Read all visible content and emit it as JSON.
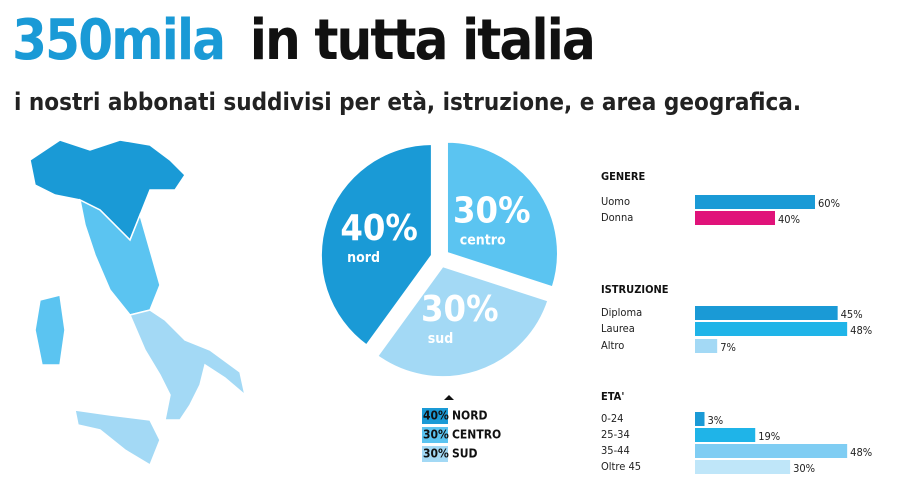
{
  "header": {
    "highlight": "350mila",
    "title": "in tutta italia",
    "subtitle": "i nostri abbonati suddivisi per età, istruzione, e area geografica."
  },
  "chart_data": [
    {
      "type": "pie",
      "categories": [
        "nord",
        "centro",
        "sud"
      ],
      "legend_labels": [
        "NORD",
        "CENTRO",
        "SUD"
      ],
      "values": [
        40,
        30,
        30
      ],
      "value_labels": [
        "40%",
        "30%",
        "30%"
      ],
      "colors": [
        "#1a9ad6",
        "#5bc4f1",
        "#a3d9f5"
      ]
    },
    {
      "type": "bar",
      "orientation": "horizontal",
      "title": "GENERE",
      "categories": [
        "Uomo",
        "Donna"
      ],
      "values": [
        60,
        40
      ],
      "value_labels": [
        "60%",
        "40%"
      ],
      "colors": [
        "#1a9ad6",
        "#e0137a"
      ]
    },
    {
      "type": "bar",
      "orientation": "horizontal",
      "title": "ISTRUZIONE",
      "categories": [
        "Diploma",
        "Laurea",
        "Altro"
      ],
      "values": [
        45,
        48,
        7
      ],
      "value_labels": [
        "45%",
        "48%",
        "7%"
      ],
      "colors": [
        "#1a9ad6",
        "#1fb4e8",
        "#a3d9f5"
      ]
    },
    {
      "type": "bar",
      "orientation": "horizontal",
      "title": "ETA'",
      "categories": [
        "0-24",
        "25-34",
        "35-44",
        "Oltre 45"
      ],
      "values": [
        3,
        19,
        48,
        30
      ],
      "value_labels": [
        "3%",
        "19%",
        "48%",
        "30%"
      ],
      "colors": [
        "#1a9ad6",
        "#1fb4e8",
        "#7fcdf3",
        "#bfe6f9"
      ]
    }
  ]
}
